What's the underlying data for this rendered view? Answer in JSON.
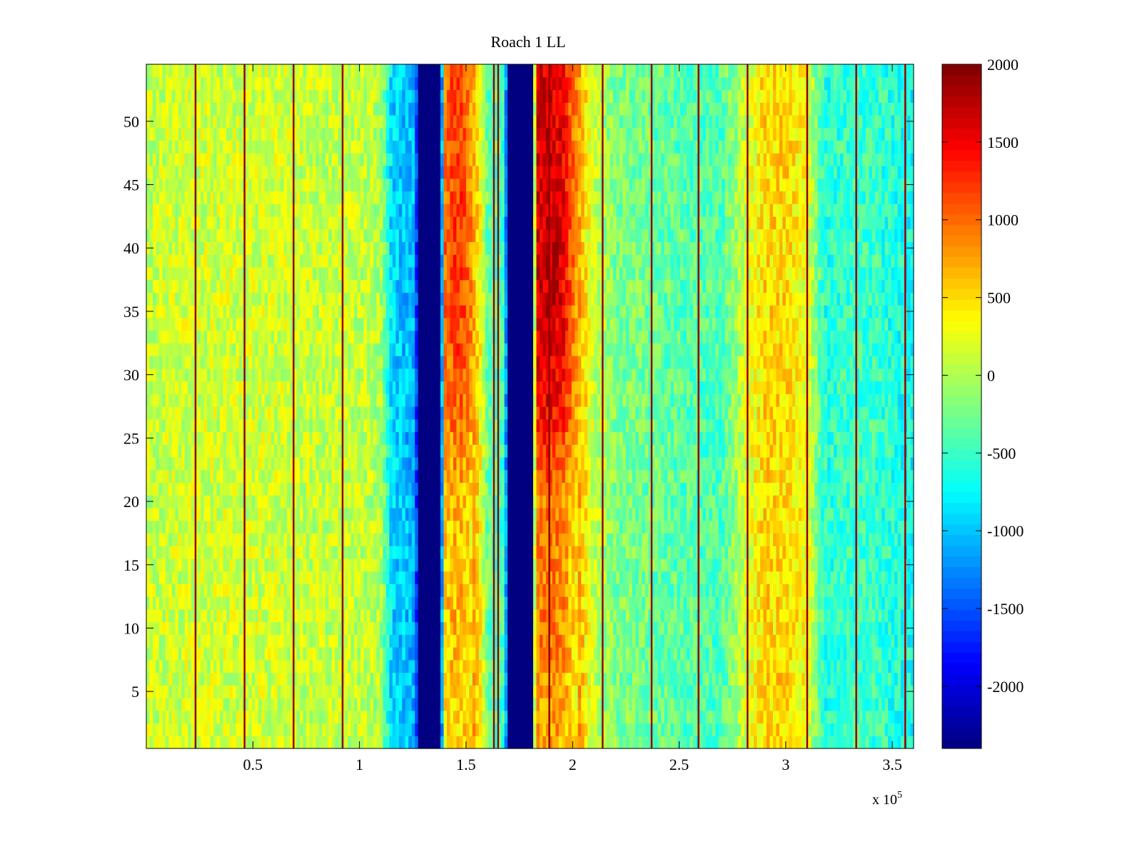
{
  "chart_data": {
    "type": "heatmap",
    "title": "Roach 1 LL",
    "xlabel": "",
    "ylabel": "",
    "x_multiplier": "x 10",
    "x_multiplier_exponent": "5",
    "xlim": [
      0,
      360000
    ],
    "ylim": [
      0.5,
      54.5
    ],
    "x_ticks": [
      0.5,
      1,
      1.5,
      2,
      2.5,
      3,
      3.5
    ],
    "y_ticks": [
      5,
      10,
      15,
      20,
      25,
      30,
      35,
      40,
      45,
      50
    ],
    "colorbar": {
      "range": [
        -2400,
        2000
      ],
      "ticks": [
        2000,
        1500,
        1000,
        500,
        0,
        -500,
        -1000,
        -1500,
        -2000
      ],
      "colormap": "jet"
    },
    "n_rows": 54,
    "x_profile": {
      "x": [
        0,
        20000,
        40000,
        60000,
        80000,
        100000,
        110000,
        115000,
        120000,
        126000,
        128000,
        138000,
        140000,
        145000,
        150000,
        157000,
        160000,
        165000,
        168000,
        170000,
        181000,
        183000,
        188000,
        195000,
        200000,
        210000,
        220000,
        240000,
        260000,
        270000,
        280000,
        290000,
        300000,
        310000,
        318000,
        330000,
        340000,
        350000,
        360000
      ],
      "mean_value": [
        100,
        150,
        150,
        150,
        100,
        100,
        0,
        -900,
        -1000,
        -1100,
        -2400,
        -2400,
        1000,
        1200,
        1100,
        300,
        -300,
        -400,
        -500,
        -2400,
        -2400,
        1600,
        1700,
        1600,
        1000,
        100,
        -200,
        -300,
        -400,
        -400,
        100,
        500,
        500,
        300,
        -600,
        -500,
        -500,
        -600,
        -700
      ]
    },
    "row_trend": {
      "rows": [
        1,
        10,
        20,
        28,
        35,
        45,
        54
      ],
      "red_band_scale": [
        0.45,
        0.55,
        0.55,
        0.9,
        1.0,
        1.0,
        0.95
      ]
    },
    "stripe_x": [
      23000,
      46000,
      69000,
      92000,
      163000,
      165000,
      189000,
      214000,
      237000,
      259000,
      282000,
      310000,
      333000,
      356000
    ]
  }
}
